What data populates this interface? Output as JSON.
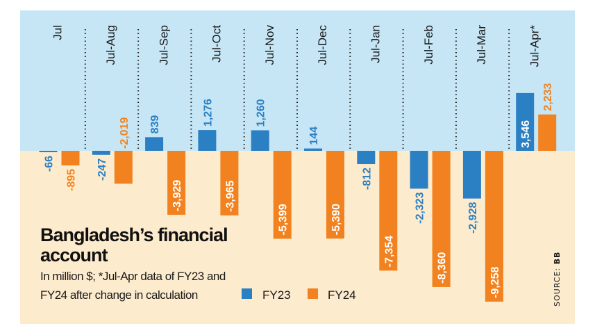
{
  "chart_data": {
    "type": "bar",
    "title": "Bangladesh’s financial account",
    "subtitle_lines": [
      "In million $; *Jul-Apr data of FY23 and",
      "FY24 after change in calculation"
    ],
    "source_label": "SOURCE: ",
    "source_value": "BB",
    "categories": [
      "Jul",
      "Jul-Aug",
      "Jul-Sep",
      "Jul-Oct",
      "Jul-Nov",
      "Jul-Dec",
      "Jul-Jan",
      "Jul-Feb",
      "Jul-Mar",
      "Jul-Apr*"
    ],
    "series": [
      {
        "name": "FY23",
        "color": "#2b7fc3",
        "values": [
          -66,
          -247,
          839,
          1276,
          1260,
          144,
          -812,
          -2323,
          -2928,
          3546
        ],
        "labels": [
          "-66",
          "-247",
          "839",
          "1,276",
          "1,260",
          "144",
          "-812",
          "-2,323",
          "-2,928",
          "3,546"
        ]
      },
      {
        "name": "FY24",
        "color": "#f2821f",
        "values": [
          -895,
          -2019,
          -3929,
          -3965,
          -5399,
          -5390,
          -7354,
          -8360,
          -9258,
          2233
        ],
        "labels": [
          "-895",
          "-2,019",
          "-3,929",
          "-3,965",
          "-5,399",
          "-5,390",
          "-7,354",
          "-8,360",
          "-9,258",
          "2,233"
        ]
      }
    ],
    "colors": {
      "positive_band": "#c6e6f6",
      "negative_band": "#fdebcd"
    },
    "ylim": [
      -9258,
      8600
    ],
    "grid": false,
    "legend": "bottom-left"
  }
}
